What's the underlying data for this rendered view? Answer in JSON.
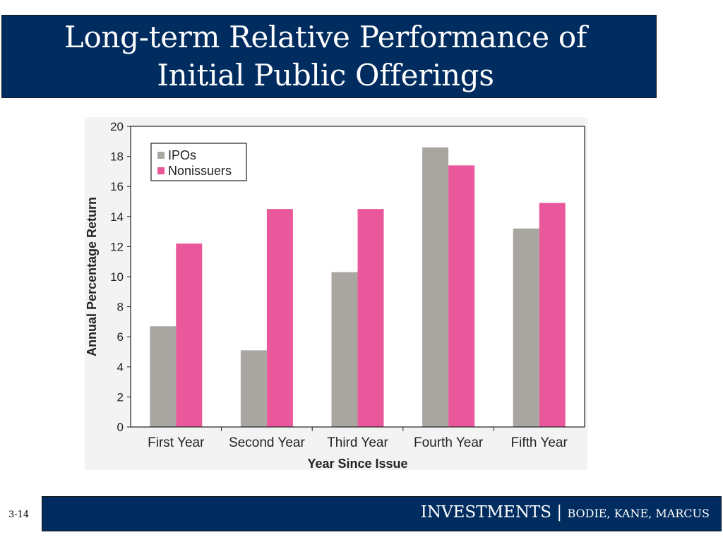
{
  "slide": {
    "title": "Long-term Relative Performance of Initial Public Offerings",
    "number": "3-14",
    "footer_main": "INVESTMENTS | ",
    "footer_sub": "BODIE, KANE, MARCUS",
    "colors": {
      "bar_bg": "#002c5f",
      "bar_text": "#ffffff"
    }
  },
  "chart_data": {
    "type": "bar",
    "categories": [
      "First Year",
      "Second Year",
      "Third Year",
      "Fourth Year",
      "Fifth Year"
    ],
    "series": [
      {
        "name": "IPOs",
        "values": [
          6.7,
          5.1,
          10.3,
          18.6,
          13.2
        ],
        "color": "#a9a6a2"
      },
      {
        "name": "Nonissuers",
        "values": [
          12.2,
          14.5,
          14.5,
          17.4,
          14.9
        ],
        "color": "#e8589a"
      }
    ],
    "title": "",
    "xlabel": "Year Since Issue",
    "ylabel": "Annual Percentage Return",
    "ylim": [
      0,
      20
    ],
    "yticks": [
      0,
      2,
      4,
      6,
      8,
      10,
      12,
      14,
      16,
      18,
      20
    ],
    "grid": false,
    "legend": "top-left"
  }
}
